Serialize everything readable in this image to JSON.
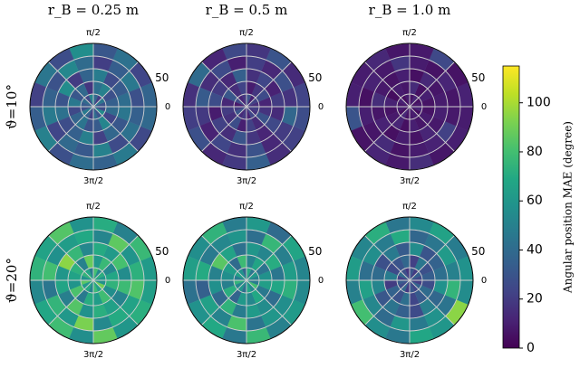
{
  "colorbar": {
    "label": "Angular position MAE (degree)",
    "cmap": "viridis",
    "lim": [
      0,
      115
    ],
    "ticks": [
      0,
      20,
      40,
      60,
      80,
      100
    ]
  },
  "chart_data": [
    {
      "type": "polar_heatmap",
      "title": "r_B = 0.25 m",
      "ylabel": "ϑ=10°",
      "rlim": [
        0,
        50
      ],
      "rticks": [
        50
      ],
      "rgrid": [
        10,
        20,
        30,
        40,
        50
      ],
      "thetalim": [
        0,
        360
      ],
      "thetaticks": [
        0,
        {
          "value": 90,
          "label": "π/2"
        },
        {
          "value": 270,
          "label": "3π/2"
        }
      ],
      "thetagrid": [
        0,
        45,
        90,
        135,
        180,
        225,
        270,
        315
      ],
      "values": [
        [
          30,
          45,
          20,
          38,
          52,
          25,
          40,
          33,
          28,
          47,
          36,
          22,
          41,
          30,
          55,
          27
        ],
        [
          35,
          28,
          50,
          42,
          18,
          39,
          31,
          46,
          25,
          37,
          44,
          29,
          33,
          52,
          24,
          40
        ],
        [
          41,
          33,
          26,
          48,
          37,
          20,
          55,
          30,
          43,
          27,
          35,
          49,
          22,
          38,
          31,
          45
        ],
        [
          28,
          46,
          34,
          21,
          40,
          53,
          29,
          36,
          47,
          24,
          39,
          32,
          50,
          26,
          43,
          35
        ],
        [
          37,
          24,
          43,
          31,
          56,
          27,
          45,
          22,
          34,
          50,
          28,
          41,
          36,
          47,
          25,
          39
        ]
      ]
    },
    {
      "type": "polar_heatmap",
      "title": "r_B = 0.5 m",
      "rlim": [
        0,
        50
      ],
      "rticks": [
        50
      ],
      "rgrid": [
        10,
        20,
        30,
        40,
        50
      ],
      "thetalim": [
        0,
        360
      ],
      "thetaticks": [
        0,
        {
          "value": 90,
          "label": "π/2"
        },
        {
          "value": 270,
          "label": "3π/2"
        }
      ],
      "thetagrid": [
        0,
        45,
        90,
        135,
        180,
        225,
        270,
        315
      ],
      "values": [
        [
          15,
          22,
          10,
          28,
          18,
          12,
          25,
          8,
          20,
          30,
          14,
          19,
          11,
          24,
          17,
          21
        ],
        [
          12,
          26,
          18,
          9,
          23,
          15,
          31,
          13,
          20,
          16,
          27,
          10,
          22,
          14,
          29,
          17
        ],
        [
          20,
          11,
          24,
          16,
          35,
          13,
          19,
          27,
          9,
          22,
          15,
          30,
          18,
          12,
          25,
          14
        ],
        [
          17,
          28,
          13,
          21,
          10,
          26,
          15,
          33,
          19,
          11,
          24,
          16,
          29,
          13,
          20,
          38
        ],
        [
          23,
          14,
          30,
          18,
          25,
          12,
          40,
          16,
          21,
          28,
          13,
          19,
          35,
          15,
          22,
          27
        ]
      ]
    },
    {
      "type": "polar_heatmap",
      "title": "r_B = 1.0 m",
      "rlim": [
        0,
        50
      ],
      "rticks": [
        50
      ],
      "rgrid": [
        10,
        20,
        30,
        40,
        50
      ],
      "thetalim": [
        0,
        360
      ],
      "thetaticks": [
        0,
        {
          "value": 90,
          "label": "π/2"
        },
        {
          "value": 270,
          "label": "3π/2"
        }
      ],
      "thetagrid": [
        0,
        45,
        90,
        135,
        180,
        225,
        270,
        315
      ],
      "values": [
        [
          8,
          5,
          12,
          6,
          9,
          4,
          11,
          7,
          10,
          5,
          13,
          6,
          8,
          9,
          4,
          12
        ],
        [
          6,
          10,
          5,
          14,
          7,
          9,
          4,
          11,
          6,
          8,
          12,
          5,
          10,
          7,
          9,
          6
        ],
        [
          9,
          7,
          13,
          5,
          10,
          6,
          8,
          15,
          7,
          11,
          5,
          9,
          6,
          12,
          8,
          10
        ],
        [
          7,
          12,
          6,
          9,
          18,
          8,
          11,
          5,
          10,
          7,
          14,
          6,
          9,
          11,
          22,
          8
        ],
        [
          11,
          6,
          25,
          8,
          7,
          13,
          9,
          10,
          30,
          6,
          12,
          8,
          15,
          7,
          10,
          9
        ]
      ]
    },
    {
      "type": "polar_heatmap",
      "ylabel": "ϑ=20°",
      "rlim": [
        0,
        50
      ],
      "rticks": [
        50
      ],
      "rgrid": [
        10,
        20,
        30,
        40,
        50
      ],
      "thetalim": [
        0,
        360
      ],
      "thetaticks": [
        0,
        {
          "value": 90,
          "label": "π/2"
        },
        {
          "value": 270,
          "label": "3π/2"
        }
      ],
      "thetagrid": [
        0,
        45,
        90,
        135,
        180,
        225,
        270,
        315
      ],
      "values": [
        [
          60,
          72,
          55,
          80,
          48,
          68,
          75,
          58,
          85,
          62,
          70,
          52,
          78,
          64,
          90,
          57
        ],
        [
          68,
          54,
          77,
          61,
          88,
          50,
          73,
          66,
          59,
          82,
          47,
          71,
          63,
          79,
          56,
          74
        ],
        [
          55,
          81,
          62,
          70,
          53,
          76,
          95,
          60,
          67,
          49,
          84,
          58,
          72,
          65,
          51,
          78
        ],
        [
          73,
          59,
          86,
          52,
          69,
          63,
          57,
          80,
          45,
          75,
          61,
          92,
          54,
          70,
          66,
          83
        ],
        [
          62,
          77,
          50,
          71,
          58,
          84,
          66,
          74,
          53,
          68,
          79,
          56,
          87,
          60,
          72,
          64
        ]
      ]
    },
    {
      "type": "polar_heatmap",
      "rlim": [
        0,
        50
      ],
      "rticks": [
        50
      ],
      "rgrid": [
        10,
        20,
        30,
        40,
        50
      ],
      "thetalim": [
        0,
        360
      ],
      "thetaticks": [
        0,
        {
          "value": 90,
          "label": "π/2"
        },
        {
          "value": 270,
          "label": "3π/2"
        }
      ],
      "thetagrid": [
        0,
        45,
        90,
        135,
        180,
        225,
        270,
        315
      ],
      "values": [
        [
          50,
          62,
          45,
          70,
          38,
          58,
          65,
          48,
          75,
          52,
          60,
          42,
          68,
          54,
          80,
          47
        ],
        [
          58,
          44,
          67,
          51,
          78,
          40,
          63,
          56,
          49,
          72,
          37,
          61,
          53,
          69,
          46,
          64
        ],
        [
          45,
          71,
          52,
          60,
          43,
          66,
          85,
          50,
          57,
          39,
          74,
          48,
          62,
          55,
          41,
          68
        ],
        [
          63,
          49,
          76,
          42,
          59,
          53,
          47,
          70,
          35,
          65,
          51,
          82,
          44,
          60,
          56,
          73
        ],
        [
          52,
          67,
          40,
          61,
          48,
          74,
          56,
          64,
          43,
          58,
          69,
          46,
          77,
          50,
          62,
          54
        ]
      ]
    },
    {
      "type": "polar_heatmap",
      "rlim": [
        0,
        50
      ],
      "rticks": [
        50
      ],
      "rgrid": [
        10,
        20,
        30,
        40,
        50
      ],
      "thetalim": [
        0,
        360
      ],
      "thetaticks": [
        0,
        {
          "value": 90,
          "label": "π/2"
        },
        {
          "value": 270,
          "label": "3π/2"
        }
      ],
      "thetagrid": [
        0,
        45,
        90,
        135,
        180,
        225,
        270,
        315
      ],
      "values": [
        [
          25,
          35,
          20,
          30,
          18,
          28,
          40,
          22,
          33,
          26,
          38,
          19,
          31,
          24,
          36,
          21
        ],
        [
          34,
          28,
          45,
          22,
          38,
          30,
          26,
          48,
          20,
          36,
          29,
          42,
          24,
          33,
          40,
          27
        ],
        [
          42,
          36,
          30,
          55,
          33,
          47,
          28,
          40,
          52,
          31,
          44,
          35,
          26,
          49,
          38,
          58
        ],
        [
          50,
          62,
          45,
          38,
          70,
          48,
          56,
          42,
          65,
          53,
          40,
          60,
          47,
          58,
          44,
          75
        ],
        [
          58,
          48,
          66,
          54,
          45,
          72,
          52,
          63,
          50,
          80,
          56,
          46,
          68,
          60,
          95,
          55
        ]
      ]
    }
  ]
}
